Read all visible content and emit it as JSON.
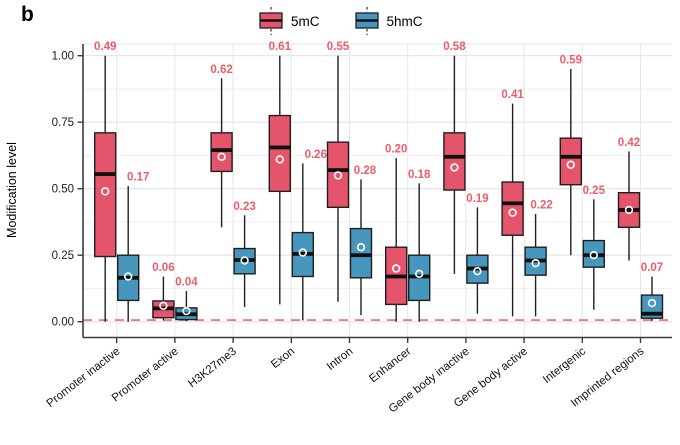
{
  "panel_label": "b",
  "legend": {
    "items": [
      {
        "label": "5mC",
        "color": "#E4556B"
      },
      {
        "label": "5hmC",
        "color": "#4796BE"
      }
    ]
  },
  "y_axis": {
    "title": "Modification level",
    "tick_labels": [
      "1.00",
      "0.75",
      "0.50",
      "0.25",
      "0.00"
    ],
    "tick_values": [
      1.0,
      0.75,
      0.5,
      0.25,
      0.0
    ]
  },
  "colors": {
    "mc_fill": "#E4556B",
    "hmc_fill": "#4796BE",
    "mean_label": "#ED5C68",
    "reference_line": "#EE6A68"
  },
  "chart_data": {
    "type": "boxplot",
    "ylabel": "Modification level",
    "ylim": [
      -0.06,
      1.05
    ],
    "grid": {
      "major": [
        0.0,
        0.25,
        0.5,
        0.75,
        1.0
      ],
      "minor": [
        0.125,
        0.375,
        0.625,
        0.875
      ]
    },
    "reference_line": {
      "y": 0.006,
      "style": "dashed",
      "color": "#EE6A68"
    },
    "legend_position": "top-center",
    "categories": [
      "Promoter inactive",
      "Promoter active",
      "H3K27me3",
      "Exon",
      "Intron",
      "Enhancer",
      "Gene body inactive",
      "Gene body active",
      "Intergenic",
      "Imprinted regions"
    ],
    "series": [
      {
        "name": "5mC",
        "color": "#E4556B",
        "boxes": [
          {
            "lo": 0.0,
            "q1": 0.245,
            "med": 0.555,
            "q3": 0.71,
            "hi": 1.0,
            "mean": 0.49,
            "label": "0.49",
            "ldx": 0
          },
          {
            "lo": 0.005,
            "q1": 0.015,
            "med": 0.05,
            "q3": 0.078,
            "hi": 0.17,
            "mean": 0.06,
            "label": "0.06",
            "ldx": 0
          },
          {
            "lo": 0.355,
            "q1": 0.565,
            "med": 0.645,
            "q3": 0.71,
            "hi": 0.915,
            "mean": 0.62,
            "label": "0.62",
            "ldx": 0
          },
          {
            "lo": 0.065,
            "q1": 0.49,
            "med": 0.655,
            "q3": 0.775,
            "hi": 1.0,
            "mean": 0.61,
            "label": "0.61",
            "ldx": 0
          },
          {
            "lo": 0.075,
            "q1": 0.43,
            "med": 0.57,
            "q3": 0.675,
            "hi": 1.0,
            "mean": 0.55,
            "label": "0.55",
            "ldx": 0
          },
          {
            "lo": 0.0,
            "q1": 0.065,
            "med": 0.17,
            "q3": 0.28,
            "hi": 0.615,
            "mean": 0.2,
            "label": "0.20",
            "ldx": 0
          },
          {
            "lo": 0.18,
            "q1": 0.495,
            "med": 0.62,
            "q3": 0.71,
            "hi": 1.0,
            "mean": 0.58,
            "label": "0.58",
            "ldx": 0
          },
          {
            "lo": 0.02,
            "q1": 0.325,
            "med": 0.445,
            "q3": 0.525,
            "hi": 0.82,
            "mean": 0.41,
            "label": "0.41",
            "ldx": 0
          },
          {
            "lo": 0.25,
            "q1": 0.515,
            "med": 0.62,
            "q3": 0.69,
            "hi": 0.95,
            "mean": 0.59,
            "label": "0.59",
            "ldx": 0
          },
          {
            "lo": 0.23,
            "q1": 0.355,
            "med": 0.42,
            "q3": 0.485,
            "hi": 0.64,
            "mean": 0.42,
            "label": "0.42",
            "ldx": 0
          }
        ]
      },
      {
        "name": "5hmC",
        "color": "#4796BE",
        "boxes": [
          {
            "lo": 0.0,
            "q1": 0.08,
            "med": 0.165,
            "q3": 0.25,
            "hi": 0.51,
            "mean": 0.17,
            "label": "0.17",
            "ldx": 10
          },
          {
            "lo": 0.002,
            "q1": 0.008,
            "med": 0.028,
            "q3": 0.052,
            "hi": 0.115,
            "mean": 0.04,
            "label": "0.04",
            "ldx": 0
          },
          {
            "lo": 0.055,
            "q1": 0.18,
            "med": 0.232,
            "q3": 0.275,
            "hi": 0.4,
            "mean": 0.23,
            "label": "0.23",
            "ldx": 0
          },
          {
            "lo": 0.005,
            "q1": 0.17,
            "med": 0.255,
            "q3": 0.335,
            "hi": 0.595,
            "mean": 0.26,
            "label": "0.26",
            "ldx": 13
          },
          {
            "lo": 0.025,
            "q1": 0.165,
            "med": 0.25,
            "q3": 0.35,
            "hi": 0.535,
            "mean": 0.28,
            "label": "0.28",
            "ldx": 4
          },
          {
            "lo": 0.0,
            "q1": 0.08,
            "med": 0.17,
            "q3": 0.25,
            "hi": 0.52,
            "mean": 0.18,
            "label": "0.18",
            "ldx": 0
          },
          {
            "lo": 0.03,
            "q1": 0.145,
            "med": 0.2,
            "q3": 0.25,
            "hi": 0.43,
            "mean": 0.19,
            "label": "0.19",
            "ldx": 0
          },
          {
            "lo": 0.02,
            "q1": 0.175,
            "med": 0.23,
            "q3": 0.28,
            "hi": 0.405,
            "mean": 0.22,
            "label": "0.22",
            "ldx": 6
          },
          {
            "lo": 0.045,
            "q1": 0.205,
            "med": 0.25,
            "q3": 0.305,
            "hi": 0.46,
            "mean": 0.25,
            "label": "0.25",
            "ldx": 0
          },
          {
            "lo": 0.003,
            "q1": 0.013,
            "med": 0.03,
            "q3": 0.1,
            "hi": 0.17,
            "mean": 0.07,
            "label": "0.07",
            "ldx": 0
          }
        ]
      }
    ]
  }
}
